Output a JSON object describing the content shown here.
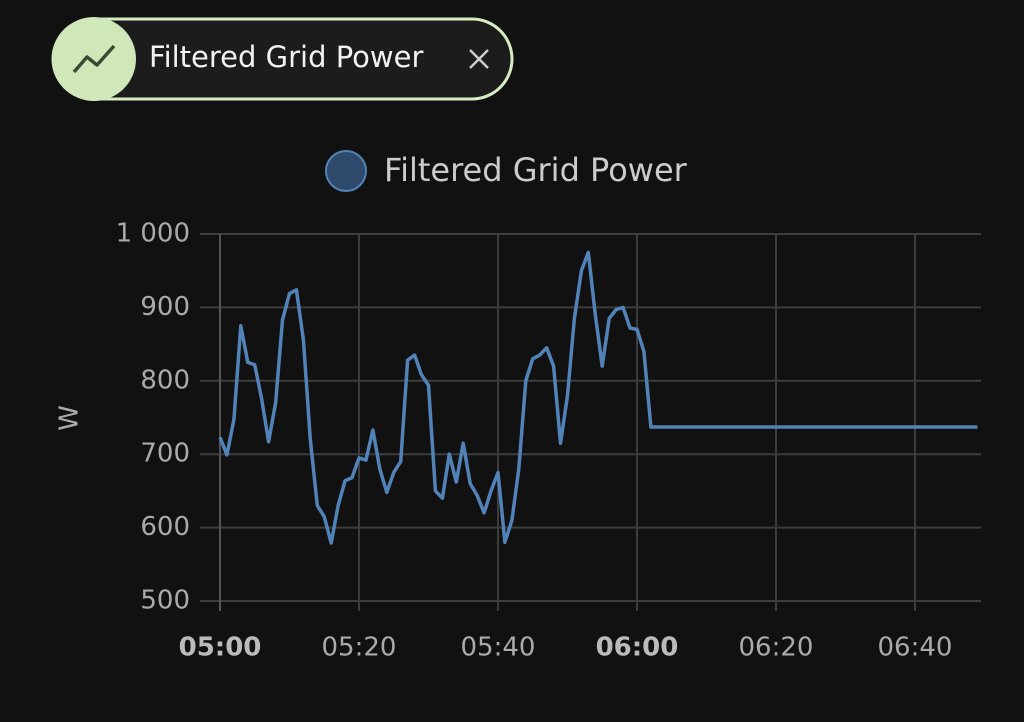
{
  "chip": {
    "label": "Filtered Grid Power"
  },
  "chart_data": {
    "type": "line",
    "ylabel": "W",
    "x": [
      "05:00",
      "05:01",
      "05:02",
      "05:03",
      "05:04",
      "05:05",
      "05:06",
      "05:07",
      "05:08",
      "05:09",
      "05:10",
      "05:11",
      "05:12",
      "05:13",
      "05:14",
      "05:15",
      "05:16",
      "05:17",
      "05:18",
      "05:19",
      "05:20",
      "05:21",
      "05:22",
      "05:23",
      "05:24",
      "05:25",
      "05:26",
      "05:27",
      "05:28",
      "05:29",
      "05:30",
      "05:31",
      "05:32",
      "05:33",
      "05:34",
      "05:35",
      "05:36",
      "05:37",
      "05:38",
      "05:39",
      "05:40",
      "05:41",
      "05:42",
      "05:43",
      "05:44",
      "05:45",
      "05:46",
      "05:47",
      "05:48",
      "05:49",
      "05:50",
      "05:51",
      "05:52",
      "05:53",
      "05:54",
      "05:55",
      "05:56",
      "05:57",
      "05:58",
      "05:59",
      "06:00",
      "06:01",
      "06:02",
      "06:49"
    ],
    "series": [
      {
        "name": "Filtered Grid Power",
        "color": "#5283b8",
        "values": [
          723,
          699,
          747,
          875,
          825,
          822,
          775,
          717,
          770,
          883,
          919,
          924,
          856,
          720,
          630,
          615,
          579,
          630,
          664,
          668,
          695,
          692,
          733,
          680,
          648,
          675,
          690,
          828,
          835,
          808,
          794,
          650,
          640,
          700,
          662,
          715,
          660,
          644,
          620,
          650,
          675,
          580,
          610,
          680,
          800,
          830,
          835,
          845,
          820,
          715,
          780,
          885,
          950,
          975,
          890,
          820,
          885,
          897,
          900,
          872,
          870,
          840,
          737,
          737
        ]
      }
    ],
    "xlim": [
      "05:00",
      "06:49"
    ],
    "xticks": [
      "05:00",
      "05:20",
      "05:40",
      "06:00",
      "06:20",
      "06:40"
    ],
    "xtick_bold": [
      true,
      false,
      false,
      true,
      false,
      false
    ],
    "ylim": [
      500,
      1000
    ],
    "yticks": [
      500,
      600,
      700,
      800,
      900,
      {
        "value": 1000,
        "label": "1 000"
      }
    ],
    "grid": true,
    "legend": "top"
  }
}
